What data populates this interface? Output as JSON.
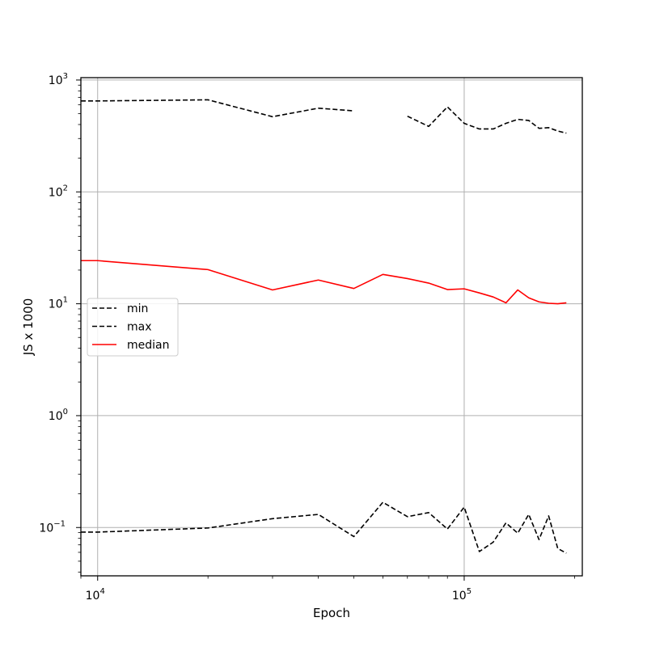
{
  "chart_data": {
    "type": "line",
    "title": "",
    "xlabel": "Epoch",
    "ylabel": "JS x 1000",
    "xscale": "log",
    "yscale": "log",
    "xlim": [
      9000,
      210000
    ],
    "ylim": [
      0.037,
      1050
    ],
    "grid": true,
    "legend_position": "center-left",
    "x_ticks": [
      {
        "value": 10000,
        "base": "10",
        "exp": "4"
      },
      {
        "value": 100000,
        "base": "10",
        "exp": "5"
      }
    ],
    "y_ticks": [
      {
        "value": 0.1,
        "base": "10",
        "exp": "−1"
      },
      {
        "value": 1,
        "base": "10",
        "exp": "0"
      },
      {
        "value": 10,
        "base": "10",
        "exp": "1"
      },
      {
        "value": 100,
        "base": "10",
        "exp": "2"
      },
      {
        "value": 1000,
        "base": "10",
        "exp": "3"
      }
    ],
    "series": [
      {
        "name": "min",
        "color": "#000000",
        "style": "dashed",
        "points": [
          [
            9000,
            0.091
          ],
          [
            10000,
            0.091
          ],
          [
            20000,
            0.099
          ],
          [
            30000,
            0.12
          ],
          [
            40000,
            0.131
          ],
          [
            50000,
            0.083
          ],
          [
            60000,
            0.168
          ],
          [
            70000,
            0.125
          ],
          [
            80000,
            0.136
          ],
          [
            90000,
            0.097
          ],
          [
            100000,
            0.152
          ],
          [
            110000,
            0.061
          ],
          [
            120000,
            0.074
          ],
          [
            130000,
            0.11
          ],
          [
            140000,
            0.089
          ],
          [
            150000,
            0.131
          ],
          [
            160000,
            0.078
          ],
          [
            170000,
            0.127
          ],
          [
            180000,
            0.065
          ],
          [
            190000,
            0.059
          ]
        ]
      },
      {
        "name": "max",
        "color": "#000000",
        "style": "dashed",
        "points": [
          [
            9000,
            650
          ],
          [
            10000,
            650
          ],
          [
            20000,
            665
          ],
          [
            30000,
            470
          ],
          [
            40000,
            560
          ],
          [
            50000,
            530
          ],
          [
            60000,
            null
          ],
          [
            70000,
            475
          ],
          [
            80000,
            385
          ],
          [
            90000,
            575
          ],
          [
            100000,
            410
          ],
          [
            110000,
            365
          ],
          [
            120000,
            365
          ],
          [
            130000,
            410
          ],
          [
            140000,
            445
          ],
          [
            150000,
            435
          ],
          [
            160000,
            370
          ],
          [
            170000,
            375
          ],
          [
            180000,
            350
          ],
          [
            190000,
            335
          ]
        ]
      },
      {
        "name": "median",
        "color": "#ff0000",
        "style": "solid",
        "points": [
          [
            9000,
            24.3
          ],
          [
            10000,
            24.3
          ],
          [
            20000,
            20.2
          ],
          [
            30000,
            13.3
          ],
          [
            40000,
            16.3
          ],
          [
            50000,
            13.7
          ],
          [
            60000,
            18.3
          ],
          [
            70000,
            16.8
          ],
          [
            80000,
            15.3
          ],
          [
            90000,
            13.4
          ],
          [
            100000,
            13.6
          ],
          [
            110000,
            12.5
          ],
          [
            120000,
            11.5
          ],
          [
            130000,
            10.2
          ],
          [
            140000,
            13.3
          ],
          [
            150000,
            11.3
          ],
          [
            160000,
            10.4
          ],
          [
            170000,
            10.1
          ],
          [
            180000,
            10.0
          ],
          [
            190000,
            10.2
          ]
        ]
      }
    ]
  }
}
